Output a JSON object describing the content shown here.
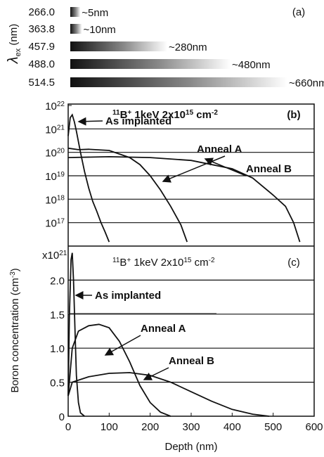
{
  "chart_data": [
    {
      "type": "gradient-bar",
      "ylabel": "λ",
      "ylabel_sub": "ex",
      "ylabel_rest": " (nm)",
      "panel_label": "(a)",
      "categories": [
        "266.0",
        "363.8",
        "457.9",
        "488.0",
        "514.5"
      ],
      "values": [
        5,
        10,
        280,
        480,
        660
      ],
      "value_labels": [
        "~5nm",
        "~10nm",
        "~280nm",
        "~480nm",
        "~660nm"
      ],
      "color": "#111111"
    },
    {
      "type": "line",
      "log_y": true,
      "grid": true,
      "panel_label": "(b)",
      "title_parts": [
        {
          "t": "11",
          "sup": true
        },
        {
          "t": "B"
        },
        {
          "t": "+",
          "sup": true
        },
        {
          "t": " 1keV 2x10"
        },
        {
          "t": "15",
          "sup": true
        },
        {
          "t": " cm"
        },
        {
          "t": "-2",
          "sup": true
        }
      ],
      "ylabel_parts": [
        {
          "t": "Boron concentration (cm"
        },
        {
          "t": "-3",
          "sup": true
        },
        {
          "t": ")"
        }
      ],
      "xlim": [
        0,
        600
      ],
      "ylim": [
        1e+16,
        1e+22
      ],
      "yticks": [
        {
          "value": 1e+17,
          "label": "10",
          "sup": "17"
        },
        {
          "value": 1e+18,
          "label": "10",
          "sup": "18"
        },
        {
          "value": 1e+19,
          "label": "10",
          "sup": "19"
        },
        {
          "value": 1e+20,
          "label": "10",
          "sup": "20"
        },
        {
          "value": 1e+21,
          "label": "10",
          "sup": "21"
        },
        {
          "value": 1e+22,
          "label": "10",
          "sup": "22"
        }
      ],
      "series": [
        {
          "name": "As implanted",
          "color": "#111111",
          "x": [
            0,
            5,
            10,
            15,
            20,
            30,
            40,
            50,
            60,
            70,
            80,
            90,
            100
          ],
          "values": [
            5e+20,
            3e+21,
            4e+21,
            2e+21,
            8e+20,
            1e+20,
            1.5e+19,
            3e+18,
            8e+17,
            3e+17,
            1e+17,
            4e+16,
            1.5e+16
          ]
        },
        {
          "name": "Anneal A",
          "color": "#111111",
          "x": [
            0,
            25,
            50,
            100,
            150,
            175,
            200,
            225,
            250,
            275,
            290
          ],
          "values": [
            1.5e+20,
            1.3e+20,
            1.35e+20,
            1.2e+20,
            6e+19,
            3e+19,
            1e+19,
            2.5e+18,
            5e+17,
            8e+16,
            1.5e+16
          ]
        },
        {
          "name": "Anneal B",
          "color": "#111111",
          "x": [
            0,
            100,
            200,
            300,
            400,
            450,
            500,
            530,
            550,
            565
          ],
          "values": [
            6e+19,
            6.5e+19,
            6e+19,
            4.5e+19,
            2e+19,
            8e+18,
            1.5e+18,
            5e+17,
            1e+17,
            1.5e+16
          ]
        }
      ]
    },
    {
      "type": "line",
      "grid": true,
      "panel_label": "(c)",
      "title_parts": [
        {
          "t": "11",
          "sup": true
        },
        {
          "t": "B"
        },
        {
          "t": "+",
          "sup": true
        },
        {
          "t": " 1keV 2x10"
        },
        {
          "t": "15",
          "sup": true
        },
        {
          "t": " cm"
        },
        {
          "t": "-2",
          "sup": true
        }
      ],
      "y_multiplier": {
        "label": "x10",
        "sup": "21"
      },
      "xlabel": "Depth (nm)",
      "xlim": [
        0,
        600
      ],
      "xticks": [
        0,
        100,
        200,
        300,
        400,
        500,
        600
      ],
      "ylim": [
        0,
        2.5
      ],
      "yticks": [
        0,
        0.5,
        {
          "value": 1,
          "label": "1.0"
        },
        1.5,
        {
          "value": 2,
          "label": "2.0"
        }
      ],
      "series": [
        {
          "name": "As implanted",
          "color": "#111111",
          "x": [
            0,
            3,
            7,
            10,
            13,
            17,
            20,
            25,
            30,
            40
          ],
          "values": [
            0.3,
            1.5,
            2.3,
            2.4,
            2.0,
            1.2,
            0.6,
            0.2,
            0.05,
            0
          ]
        },
        {
          "name": "Anneal A",
          "color": "#111111",
          "x": [
            0,
            10,
            25,
            50,
            75,
            100,
            125,
            150,
            175,
            200,
            225,
            250
          ],
          "values": [
            0.3,
            1.0,
            1.25,
            1.33,
            1.35,
            1.3,
            1.1,
            0.8,
            0.45,
            0.2,
            0.06,
            0
          ]
        },
        {
          "name": "Anneal B",
          "color": "#111111",
          "x": [
            0,
            10,
            50,
            100,
            150,
            200,
            250,
            300,
            350,
            400,
            450,
            490
          ],
          "values": [
            0.3,
            0.5,
            0.58,
            0.63,
            0.64,
            0.6,
            0.5,
            0.36,
            0.22,
            0.1,
            0.03,
            0
          ]
        }
      ]
    }
  ]
}
